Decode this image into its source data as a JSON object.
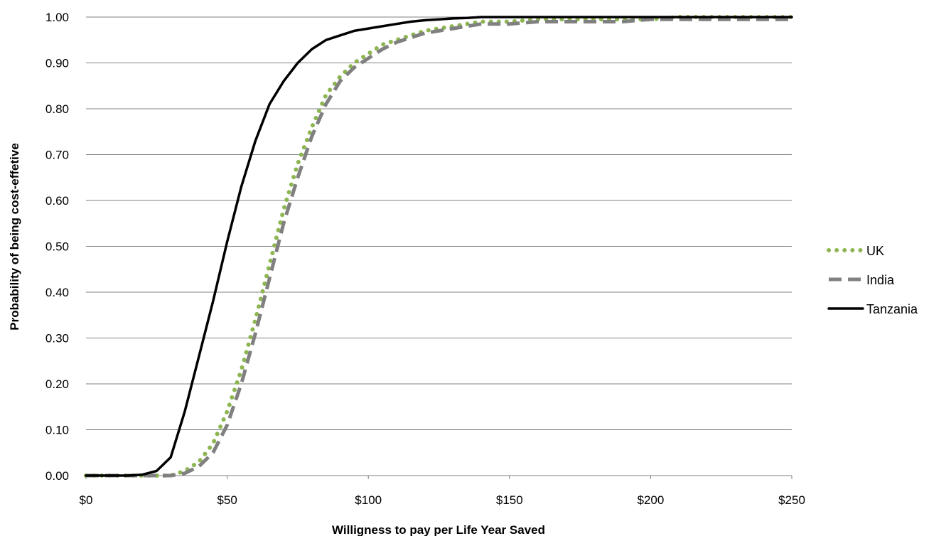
{
  "chart_data": {
    "type": "line",
    "title": "",
    "xlabel": "Willigness to pay per Life Year Saved",
    "ylabel": "Probability of being cost-effetive",
    "xlim": [
      0,
      250
    ],
    "ylim": [
      0,
      1
    ],
    "x_ticks": [
      0,
      50,
      100,
      150,
      200,
      250
    ],
    "x_tick_labels": [
      "$0",
      "$50",
      "$100",
      "$150",
      "$200",
      "$250"
    ],
    "y_ticks": [
      0,
      0.1,
      0.2,
      0.3,
      0.4,
      0.5,
      0.6,
      0.7,
      0.8,
      0.9,
      1.0
    ],
    "y_tick_labels": [
      "0.00",
      "0.10",
      "0.20",
      "0.30",
      "0.40",
      "0.50",
      "0.60",
      "0.70",
      "0.80",
      "0.90",
      "1.00"
    ],
    "grid": "horizontal",
    "legend_position": "right",
    "series": [
      {
        "name": "UK",
        "color": "#8db652",
        "style": "dotted",
        "x": [
          0,
          5,
          10,
          15,
          20,
          25,
          30,
          35,
          40,
          45,
          50,
          55,
          60,
          65,
          70,
          75,
          80,
          85,
          90,
          95,
          100,
          105,
          110,
          115,
          120,
          125,
          130,
          135,
          140,
          150,
          160,
          170,
          180,
          190,
          200,
          210,
          220,
          230,
          240,
          250
        ],
        "y": [
          0,
          0,
          0,
          0,
          0,
          0,
          0,
          0.01,
          0.03,
          0.07,
          0.14,
          0.23,
          0.34,
          0.46,
          0.58,
          0.68,
          0.76,
          0.83,
          0.87,
          0.9,
          0.92,
          0.94,
          0.95,
          0.96,
          0.97,
          0.975,
          0.98,
          0.985,
          0.99,
          0.99,
          0.995,
          0.995,
          0.995,
          0.995,
          0.995,
          1.0,
          1.0,
          1.0,
          1.0,
          1.0
        ]
      },
      {
        "name": "India",
        "color": "#808080",
        "style": "dashed",
        "x": [
          0,
          5,
          10,
          15,
          20,
          25,
          30,
          35,
          40,
          45,
          50,
          55,
          60,
          65,
          70,
          75,
          80,
          85,
          90,
          95,
          100,
          105,
          110,
          115,
          120,
          125,
          130,
          135,
          140,
          150,
          160,
          170,
          180,
          190,
          200,
          210,
          220,
          230,
          240,
          250
        ],
        "y": [
          0,
          0,
          0,
          0,
          0,
          0,
          0,
          0.005,
          0.02,
          0.05,
          0.11,
          0.2,
          0.31,
          0.43,
          0.55,
          0.65,
          0.74,
          0.81,
          0.86,
          0.89,
          0.91,
          0.93,
          0.945,
          0.955,
          0.965,
          0.97,
          0.975,
          0.98,
          0.985,
          0.985,
          0.99,
          0.99,
          0.99,
          0.99,
          0.995,
          0.995,
          0.995,
          0.995,
          0.995,
          0.995
        ]
      },
      {
        "name": "Tanzania",
        "color": "#000000",
        "style": "solid",
        "x": [
          0,
          5,
          10,
          15,
          20,
          25,
          30,
          35,
          40,
          45,
          50,
          55,
          60,
          65,
          70,
          75,
          80,
          85,
          90,
          95,
          100,
          105,
          110,
          115,
          120,
          125,
          130,
          135,
          140,
          150,
          160,
          170,
          180,
          190,
          200,
          210,
          220,
          230,
          240,
          250
        ],
        "y": [
          0,
          0,
          0,
          0,
          0.002,
          0.01,
          0.04,
          0.14,
          0.26,
          0.38,
          0.51,
          0.63,
          0.73,
          0.81,
          0.86,
          0.9,
          0.93,
          0.95,
          0.96,
          0.97,
          0.975,
          0.98,
          0.985,
          0.99,
          0.993,
          0.995,
          0.997,
          0.998,
          1.0,
          1.0,
          1.0,
          1.0,
          1.0,
          1.0,
          1.0,
          1.0,
          1.0,
          1.0,
          1.0,
          1.0
        ]
      }
    ]
  }
}
